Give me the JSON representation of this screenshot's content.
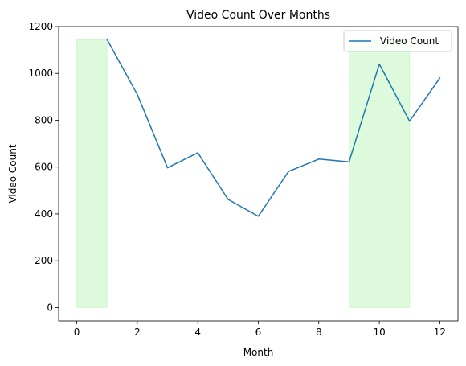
{
  "chart_data": {
    "type": "line",
    "title": "Video Count Over Months",
    "xlabel": "Month",
    "ylabel": "Video Count",
    "xlim": [
      -0.6,
      12.6
    ],
    "ylim": [
      -57,
      1200
    ],
    "x_ticks": [
      0,
      2,
      4,
      6,
      8,
      10,
      12
    ],
    "y_ticks": [
      0,
      200,
      400,
      600,
      800,
      1000,
      1200
    ],
    "grid": false,
    "legend_position": "top-right",
    "series": [
      {
        "name": "Video Count",
        "color": "#1f77b4",
        "x": [
          1,
          2,
          3,
          4,
          5,
          6,
          7,
          8,
          9,
          10,
          11,
          12
        ],
        "y": [
          1145,
          910,
          597,
          661,
          462,
          390,
          581,
          634,
          622,
          1040,
          796,
          980
        ]
      }
    ],
    "shaded_regions": [
      {
        "x_start": 0,
        "x_end": 1,
        "y_start": 0,
        "y_end": 1145,
        "color": "#90ee90"
      },
      {
        "x_start": 9,
        "x_end": 11,
        "y_start": 0,
        "y_end": 1145,
        "color": "#90ee90"
      }
    ]
  }
}
